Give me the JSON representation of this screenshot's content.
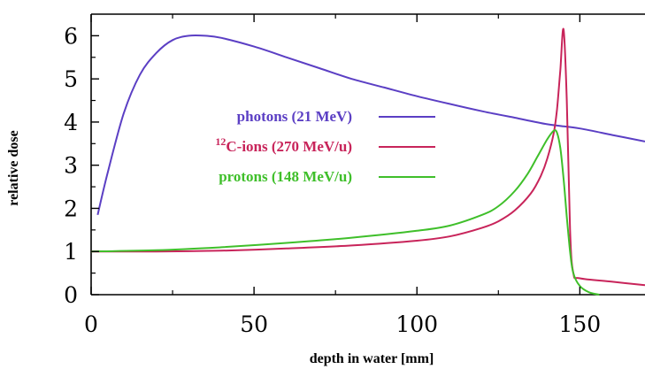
{
  "chart_data": {
    "type": "line",
    "title": "",
    "xlabel": "depth in water [mm]",
    "ylabel": "relative dose",
    "xlim": [
      0,
      170
    ],
    "ylim": [
      0,
      6.5
    ],
    "x_ticks": [
      "0",
      "50",
      "100",
      "150"
    ],
    "y_ticks": [
      "0",
      "1",
      "2",
      "3",
      "4",
      "5",
      "6"
    ],
    "grid": false,
    "legend_position": "center-left",
    "series": [
      {
        "name": "photons (21 MeV)",
        "color": "#5b3fc4",
        "x": [
          2,
          5,
          10,
          15,
          20,
          25,
          30,
          35,
          40,
          50,
          60,
          70,
          80,
          90,
          100,
          110,
          120,
          130,
          140,
          150,
          160,
          170
        ],
        "y": [
          1.85,
          2.8,
          4.2,
          5.1,
          5.6,
          5.9,
          6.0,
          6.0,
          5.95,
          5.75,
          5.5,
          5.25,
          5.0,
          4.8,
          4.6,
          4.42,
          4.25,
          4.1,
          3.95,
          3.85,
          3.7,
          3.55
        ]
      },
      {
        "name": "C-ions (270 MeV/u)",
        "name_prefix_superscript": "12",
        "color": "#c8245a",
        "x": [
          0,
          20,
          40,
          60,
          80,
          100,
          110,
          120,
          125,
          130,
          135,
          138,
          140,
          142,
          143,
          144,
          145,
          146,
          147,
          148,
          150,
          160,
          170
        ],
        "y": [
          1.0,
          1.0,
          1.02,
          1.07,
          1.14,
          1.25,
          1.35,
          1.55,
          1.7,
          1.95,
          2.35,
          2.75,
          3.15,
          3.75,
          4.3,
          5.2,
          6.15,
          4.5,
          1.5,
          0.5,
          0.38,
          0.3,
          0.22
        ]
      },
      {
        "name": "protons (148 MeV/u)",
        "color": "#3fbf2a",
        "x": [
          0,
          20,
          40,
          60,
          80,
          100,
          110,
          120,
          125,
          130,
          134,
          137,
          140,
          142,
          143,
          144,
          145,
          146,
          147,
          148,
          150,
          153,
          156
        ],
        "y": [
          1.0,
          1.03,
          1.1,
          1.2,
          1.32,
          1.48,
          1.6,
          1.85,
          2.05,
          2.4,
          2.8,
          3.2,
          3.6,
          3.8,
          3.75,
          3.4,
          2.7,
          1.8,
          1.0,
          0.5,
          0.2,
          0.05,
          0.0
        ]
      }
    ]
  }
}
